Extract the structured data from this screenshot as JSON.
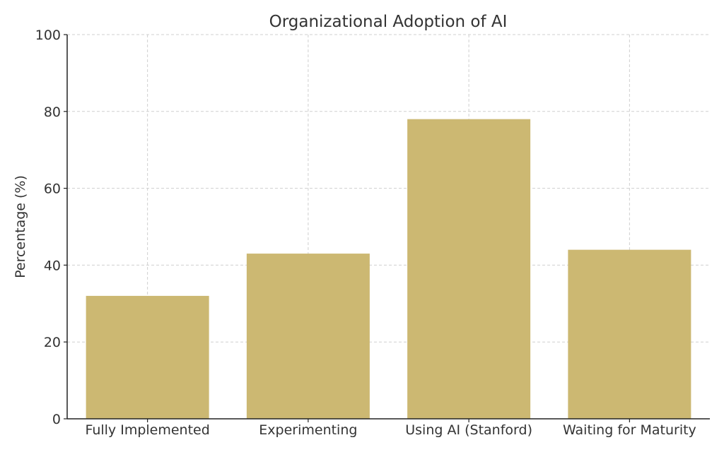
{
  "chart_data": {
    "type": "bar",
    "title": "Organizational Adoption of AI",
    "xlabel": "",
    "ylabel": "Percentage (%)",
    "categories": [
      "Fully Implemented",
      "Experimenting",
      "Using AI (Stanford)",
      "Waiting for Maturity"
    ],
    "values": [
      32,
      43,
      78,
      44
    ],
    "ylim": [
      0,
      100
    ],
    "yticks": [
      0,
      20,
      40,
      60,
      80,
      100
    ],
    "grid": true,
    "colors": {
      "bar": "#ccb872"
    }
  }
}
